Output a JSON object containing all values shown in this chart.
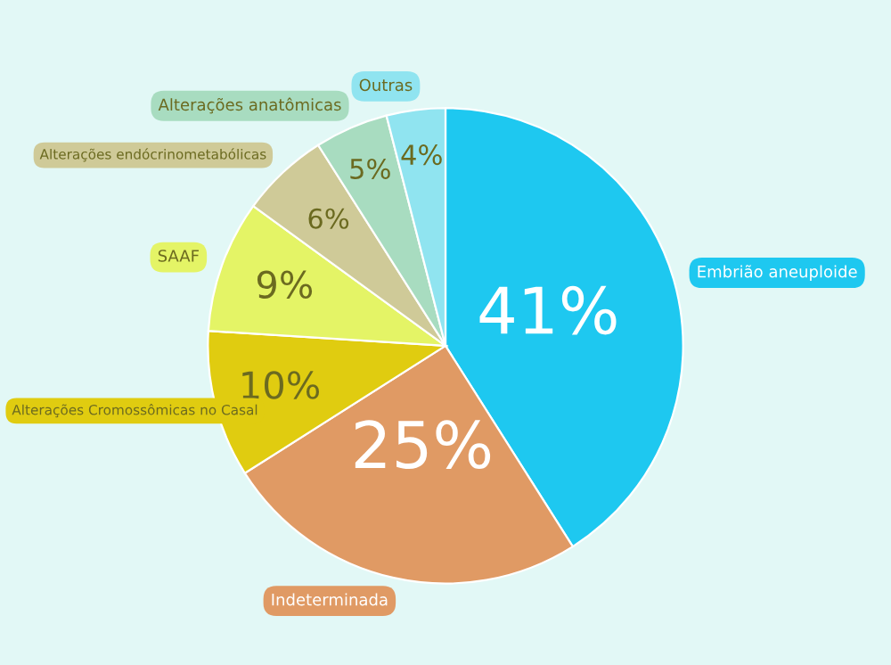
{
  "chart_data": {
    "type": "pie",
    "categories": [
      "Embrião aneuploide",
      "Indeterminada",
      "Alterações Cromossômicas no Casal",
      "SAAF",
      "Alterações endócrinometabólicas",
      "Alterações anatômicas",
      "Outras"
    ],
    "values": [
      41,
      25,
      10,
      9,
      6,
      5,
      4
    ],
    "colors": [
      "#1ec8f0",
      "#e09a64",
      "#e0cc10",
      "#e4f466",
      "#cfca98",
      "#a8dcc0",
      "#90e4f0"
    ],
    "value_labels": [
      "41%",
      "25%",
      "10%",
      "9%",
      "6%",
      "5%",
      "4%"
    ],
    "legend": false
  }
}
